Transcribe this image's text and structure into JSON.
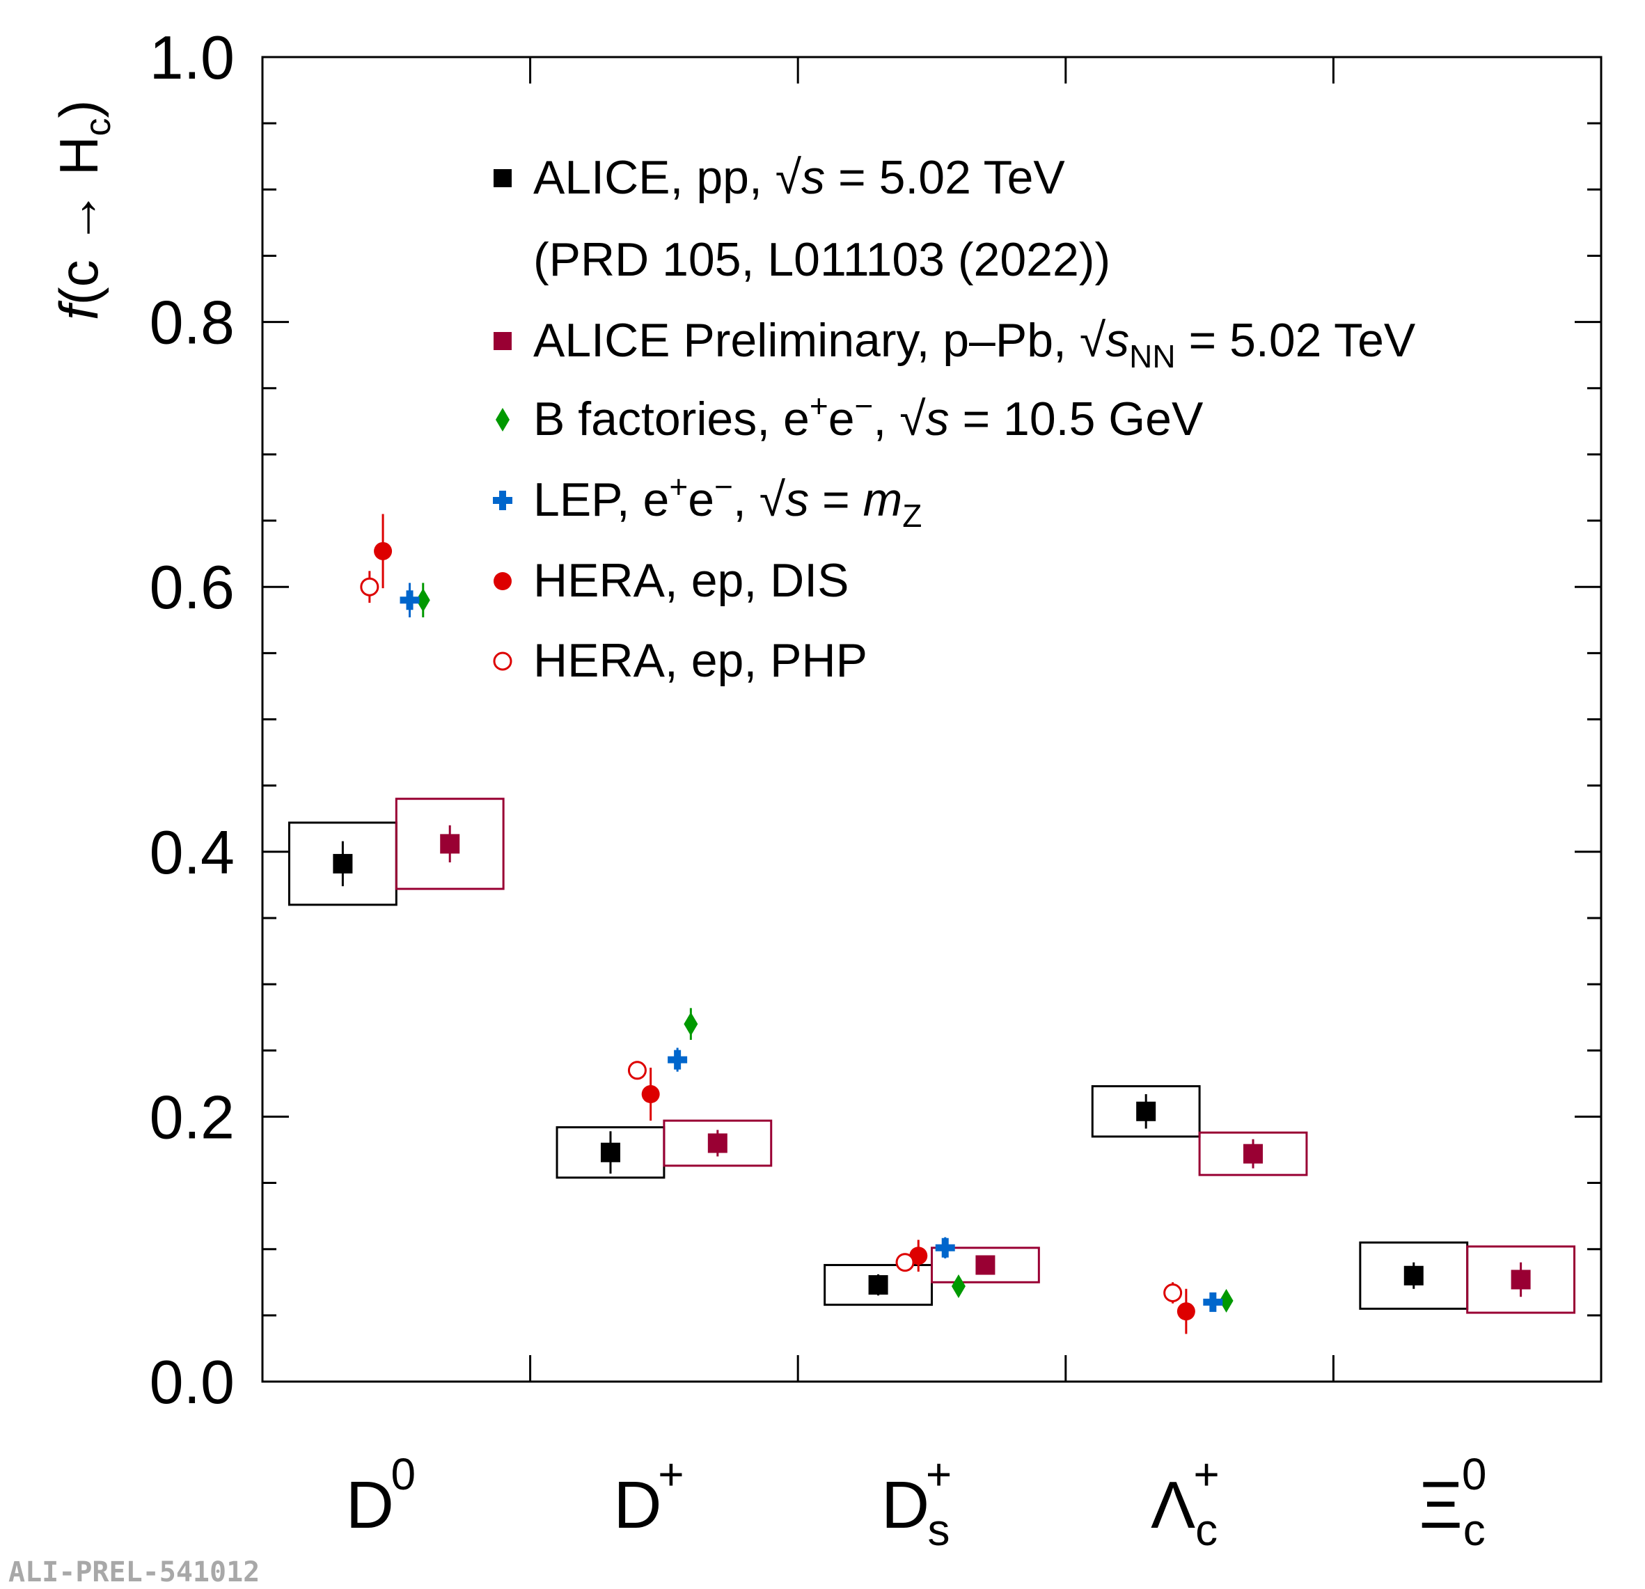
{
  "chart_data": {
    "type": "scatter",
    "title": "",
    "ylabel": "f(c → Hc)",
    "ylabel_parts": {
      "f": "f",
      "open": "(c ",
      "arrow": "→",
      "h": " H",
      "sub": "c",
      "close": ")"
    },
    "ylim": [
      0.0,
      1.0
    ],
    "yticks": [
      "0.0",
      "0.2",
      "0.4",
      "0.6",
      "0.8",
      "1.0"
    ],
    "categories": [
      {
        "base": "D",
        "sup": "0",
        "sub": ""
      },
      {
        "base": "D",
        "sup": "+",
        "sub": ""
      },
      {
        "base": "D",
        "sup": "+",
        "sub": "s"
      },
      {
        "base": "Λ",
        "sup": "+",
        "sub": "c"
      },
      {
        "base": "Ξ",
        "sup": "0",
        "sub": "c"
      }
    ],
    "series": [
      {
        "name": "ALICE, pp, √s = 5.02 TeV",
        "reference": "(PRD 105, L011103 (2022))",
        "color": "#000000",
        "marker": "square",
        "offset": -0.2,
        "values": [
          0.391,
          0.173,
          0.073,
          0.204,
          0.08
        ],
        "stat": [
          0.017,
          0.016,
          0.008,
          0.013,
          0.01
        ],
        "syst": [
          0.031,
          0.019,
          0.015,
          0.019,
          0.025
        ]
      },
      {
        "name": "ALICE Preliminary, p–Pb, √sNN = 5.02 TeV",
        "color": "#990033",
        "marker": "square",
        "offset": 0.2,
        "values": [
          0.406,
          0.18,
          0.088,
          0.172,
          0.077
        ],
        "stat": [
          0.014,
          0.01,
          0.006,
          0.011,
          0.013
        ],
        "syst": [
          0.034,
          0.017,
          0.013,
          0.016,
          0.025
        ]
      },
      {
        "name": "B factories, e⁺e⁻, √s = 10.5 GeV",
        "color": "#009900",
        "marker": "diamond",
        "offset": 0.1,
        "values": [
          0.59,
          0.27,
          0.072,
          0.061,
          null
        ],
        "stat": [
          0.013,
          0.012,
          0.005,
          0.005,
          null
        ]
      },
      {
        "name": "LEP, e⁺e⁻, √s = mZ",
        "color": "#0066cc",
        "marker": "cross",
        "offset": 0.05,
        "values": [
          0.59,
          0.243,
          0.101,
          0.06,
          null
        ],
        "stat": [
          0.013,
          0.009,
          0.008,
          0.006,
          null
        ]
      },
      {
        "name": "HERA, ep, DIS",
        "color": "#dd0000",
        "marker": "circle",
        "offset": -0.05,
        "values": [
          0.627,
          0.217,
          0.095,
          0.053,
          null
        ],
        "stat": [
          0.028,
          0.02,
          0.012,
          0.017,
          null
        ]
      },
      {
        "name": "HERA, ep, PHP",
        "color": "#dd0000",
        "marker": "open-circle",
        "offset": -0.1,
        "values": [
          0.6,
          0.235,
          0.09,
          0.067,
          null
        ],
        "stat": [
          0.012,
          0.007,
          0.006,
          0.008,
          null
        ]
      }
    ],
    "legend": {
      "position": "top-center",
      "entries": [
        {
          "marker": "square",
          "color": "#000000",
          "text": "ALICE, pp, ",
          "root": "s",
          "rootsub": "",
          "rest": " = 5.02 TeV",
          "mz": false
        },
        {
          "marker": "none",
          "color": "#000000",
          "text": "(PRD 105, L011103 (2022))"
        },
        {
          "marker": "square",
          "color": "#990033",
          "text": "ALICE Preliminary, p–Pb, ",
          "root": "s",
          "rootsub": "NN",
          "rest": " = 5.02 TeV",
          "mz": false
        },
        {
          "marker": "diamond",
          "color": "#009900",
          "text": "B factories, e",
          "ee": true,
          "root": "s",
          "rootsub": "",
          "rest": " = 10.5 GeV",
          "mz": false
        },
        {
          "marker": "cross",
          "color": "#0066cc",
          "text": "LEP, e",
          "ee": true,
          "root": "s",
          "rootsub": "",
          "rest": " = ",
          "mz": true,
          "mz_m": "m",
          "mz_sub": "Z"
        },
        {
          "marker": "circle",
          "color": "#dd0000",
          "text": "HERA, ep, DIS"
        },
        {
          "marker": "open-circle",
          "color": "#dd0000",
          "text": "HERA, ep, PHP"
        }
      ]
    },
    "watermark": "ALI-PREL-541012",
    "grid": false
  }
}
